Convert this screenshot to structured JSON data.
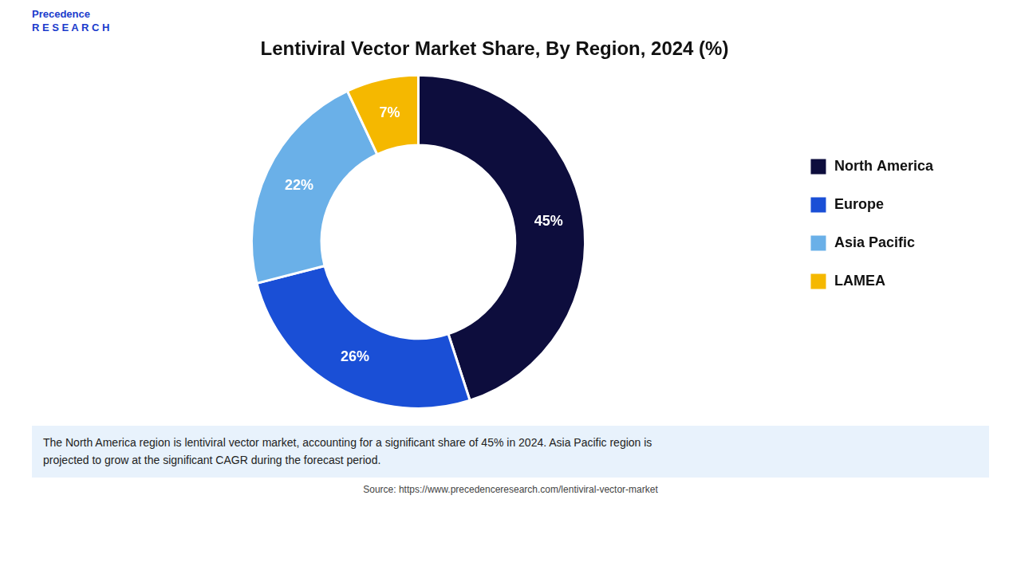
{
  "chart_data": {
    "type": "doughnut",
    "title": "Lentiviral Vector Market Share, By Region, 2024 (%)",
    "categories": [
      "North America",
      "Europe",
      "Asia Pacific",
      "LAMEA"
    ],
    "values": [
      45,
      26,
      22,
      7
    ],
    "value_labels": [
      "45%",
      "26%",
      "22%",
      "7%"
    ],
    "colors": [
      "#0d0d3d",
      "#1a4fd6",
      "#6ab0e8",
      "#f5b800"
    ],
    "data_labels": true,
    "legend": "right",
    "annotations": [
      "Precedence\nR E S E A R C H",
      "The North America region is lentiviral vector market, accounting for a significant share of 45% in 2024. Asia Pacific region is\nprojected to grow at the significant CAGR during the forecast period.",
      "Source: https://www.precedenceresearch.com/lentiviral-vector-market"
    ]
  }
}
